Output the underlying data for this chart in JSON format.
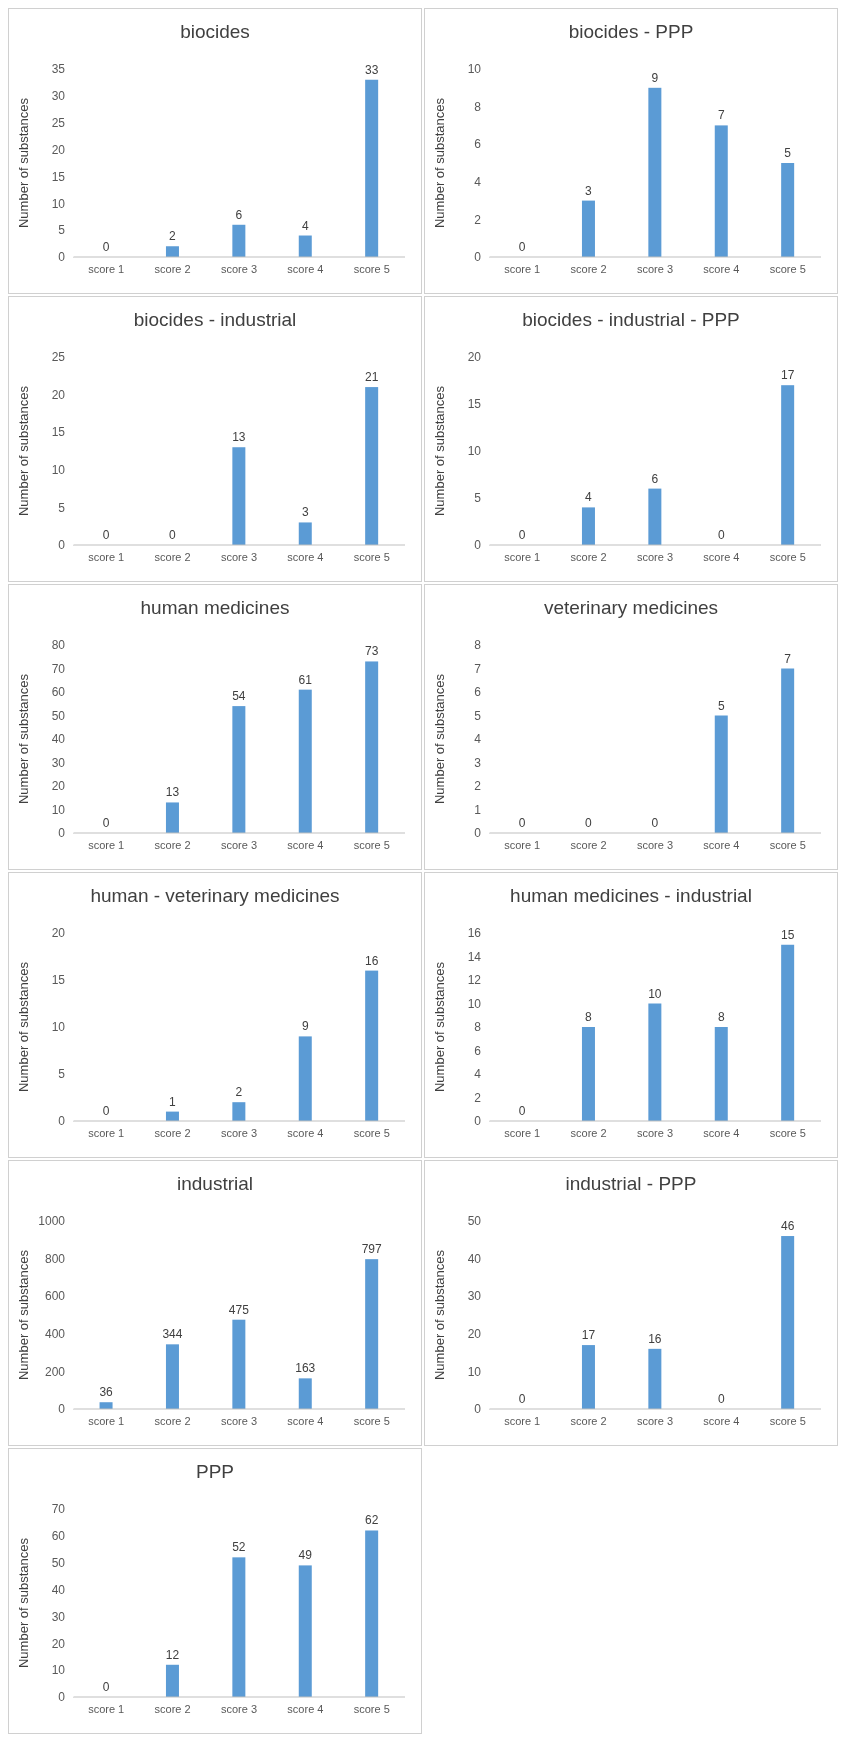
{
  "chart_data": [
    {
      "type": "bar",
      "title": "biocides",
      "ylabel": "Number of substances",
      "categories": [
        "score 1",
        "score 2",
        "score 3",
        "score 4",
        "score 5"
      ],
      "values": [
        0,
        2,
        6,
        4,
        33
      ],
      "color": "#5b9bd5",
      "ylim": [
        0,
        35
      ],
      "yticks": [
        0,
        5,
        10,
        15,
        20,
        25,
        30,
        35
      ],
      "data_labels": true
    },
    {
      "type": "bar",
      "title": "biocides - PPP",
      "ylabel": "Number of substances",
      "categories": [
        "score 1",
        "score 2",
        "score 3",
        "score 4",
        "score 5"
      ],
      "values": [
        0,
        3,
        9,
        7,
        5
      ],
      "color": "#5b9bd5",
      "ylim": [
        0,
        10
      ],
      "yticks": [
        0,
        2,
        4,
        6,
        8,
        10
      ],
      "data_labels": true
    },
    {
      "type": "bar",
      "title": "biocides - industrial",
      "ylabel": "Number of substances",
      "categories": [
        "score 1",
        "score 2",
        "score 3",
        "score 4",
        "score 5"
      ],
      "values": [
        0,
        0,
        13,
        3,
        21
      ],
      "color": "#5b9bd5",
      "ylim": [
        0,
        25
      ],
      "yticks": [
        0,
        5,
        10,
        15,
        20,
        25
      ],
      "data_labels": true
    },
    {
      "type": "bar",
      "title": "biocides - industrial - PPP",
      "ylabel": "Number of substances",
      "categories": [
        "score 1",
        "score 2",
        "score 3",
        "score 4",
        "score 5"
      ],
      "values": [
        0,
        4,
        6,
        0,
        17
      ],
      "color": "#5b9bd5",
      "ylim": [
        0,
        20
      ],
      "yticks": [
        0,
        5,
        10,
        15,
        20
      ],
      "data_labels": true
    },
    {
      "type": "bar",
      "title": "human medicines",
      "ylabel": "Number of substances",
      "categories": [
        "score 1",
        "score 2",
        "score 3",
        "score 4",
        "score 5"
      ],
      "values": [
        0,
        13,
        54,
        61,
        73
      ],
      "color": "#5b9bd5",
      "ylim": [
        0,
        80
      ],
      "yticks": [
        0,
        10,
        20,
        30,
        40,
        50,
        60,
        70,
        80
      ],
      "data_labels": true
    },
    {
      "type": "bar",
      "title": "veterinary medicines",
      "ylabel": "Number of substances",
      "categories": [
        "score 1",
        "score 2",
        "score 3",
        "score 4",
        "score 5"
      ],
      "values": [
        0,
        0,
        0,
        5,
        7
      ],
      "color": "#5b9bd5",
      "ylim": [
        0,
        8
      ],
      "yticks": [
        0,
        1,
        2,
        3,
        4,
        5,
        6,
        7,
        8
      ],
      "data_labels": true
    },
    {
      "type": "bar",
      "title": "human - veterinary medicines",
      "ylabel": "Number of substances",
      "categories": [
        "score 1",
        "score 2",
        "score 3",
        "score 4",
        "score 5"
      ],
      "values": [
        0,
        1,
        2,
        9,
        16
      ],
      "color": "#5b9bd5",
      "ylim": [
        0,
        20
      ],
      "yticks": [
        0,
        5,
        10,
        15,
        20
      ],
      "data_labels": true
    },
    {
      "type": "bar",
      "title": "human medicines - industrial",
      "ylabel": "Number of substances",
      "categories": [
        "score 1",
        "score 2",
        "score 3",
        "score 4",
        "score 5"
      ],
      "values": [
        0,
        8,
        10,
        8,
        15
      ],
      "color": "#5b9bd5",
      "ylim": [
        0,
        16
      ],
      "yticks": [
        0,
        2,
        4,
        6,
        8,
        10,
        12,
        14,
        16
      ],
      "data_labels": true
    },
    {
      "type": "bar",
      "title": "industrial",
      "ylabel": "Number of substances",
      "categories": [
        "score 1",
        "score 2",
        "score 3",
        "score 4",
        "score 5"
      ],
      "values": [
        36,
        344,
        475,
        163,
        797
      ],
      "color": "#5b9bd5",
      "ylim": [
        0,
        1000
      ],
      "yticks": [
        0,
        200,
        400,
        600,
        800,
        1000
      ],
      "data_labels": true
    },
    {
      "type": "bar",
      "title": "industrial - PPP",
      "ylabel": "Number of substances",
      "categories": [
        "score 1",
        "score 2",
        "score 3",
        "score 4",
        "score 5"
      ],
      "values": [
        0,
        17,
        16,
        0,
        46
      ],
      "color": "#5b9bd5",
      "ylim": [
        0,
        50
      ],
      "yticks": [
        0,
        10,
        20,
        30,
        40,
        50
      ],
      "data_labels": true
    },
    {
      "type": "bar",
      "title": "PPP",
      "ylabel": "Number of substances",
      "categories": [
        "score 1",
        "score 2",
        "score 3",
        "score 4",
        "score 5"
      ],
      "values": [
        0,
        12,
        52,
        49,
        62
      ],
      "color": "#5b9bd5",
      "ylim": [
        0,
        70
      ],
      "yticks": [
        0,
        10,
        20,
        30,
        40,
        50,
        60,
        70
      ],
      "data_labels": true
    }
  ]
}
